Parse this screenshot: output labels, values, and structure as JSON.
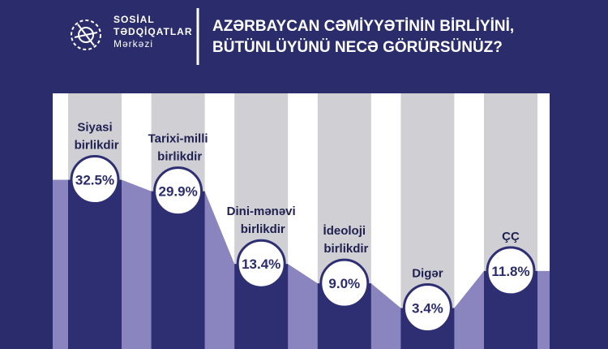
{
  "header": {
    "org_lines": [
      "SOSİAL",
      "TƏDQİQATLAR",
      "Mərkəzi"
    ],
    "title_lines": [
      "AZƏRBAYCAN CƏMİYYƏTİNİN BİRLİYİNİ,",
      "BÜTÜNLÜYÜNÜ NECƏ GÖRÜRSÜNÜZ?"
    ]
  },
  "chart_data": {
    "type": "bar",
    "categories": [
      "Siyasi birlikdir",
      "Tarixi-milli birlikdir",
      "Dini-mənəvi birlikdir",
      "İdeoloji birlikdir",
      "Digər",
      "ÇÇ"
    ],
    "values": [
      32.5,
      29.9,
      13.4,
      9.0,
      3.4,
      11.8
    ],
    "value_labels": [
      "32.5%",
      "29.9%",
      "13.4%",
      "9.0%",
      "3.4%",
      "11.8%"
    ],
    "color": "#2e2f73"
  }
}
